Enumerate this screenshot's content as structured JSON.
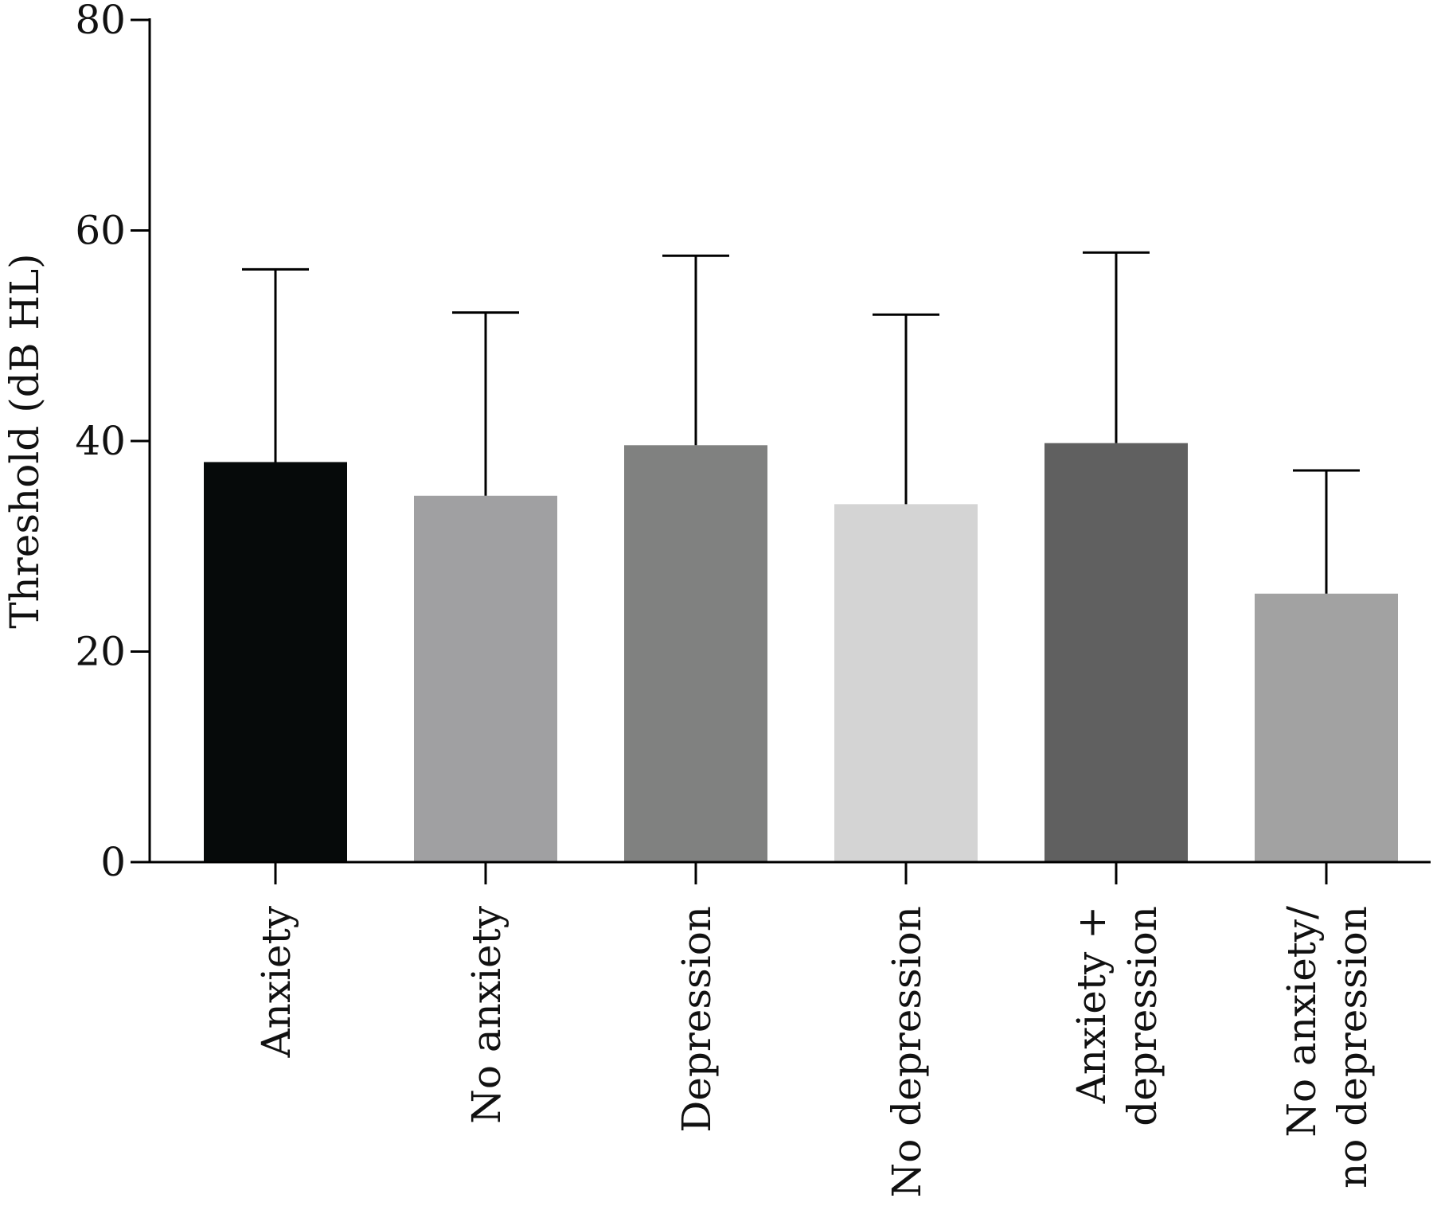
{
  "chart_data": {
    "type": "bar",
    "title": "",
    "xlabel": "",
    "ylabel": "Threshold (dB HL)",
    "ylim": [
      0,
      80
    ],
    "yticks": [
      0,
      20,
      40,
      60,
      80
    ],
    "grid": false,
    "categories": [
      [
        "Anxiety"
      ],
      [
        "No anxiety"
      ],
      [
        "Depression"
      ],
      [
        "No depression"
      ],
      [
        "Anxiety +",
        "depression"
      ],
      [
        "No anxiety/",
        "no depression"
      ]
    ],
    "values": [
      38,
      34.8,
      39.6,
      34,
      39.8,
      25.5
    ],
    "error_upper": [
      56.3,
      52.2,
      57.6,
      52,
      57.9,
      37.2
    ],
    "colors": [
      "#060a0a",
      "#a0a0a2",
      "#808180",
      "#d4d4d4",
      "#606060",
      "#a2a2a2"
    ]
  }
}
